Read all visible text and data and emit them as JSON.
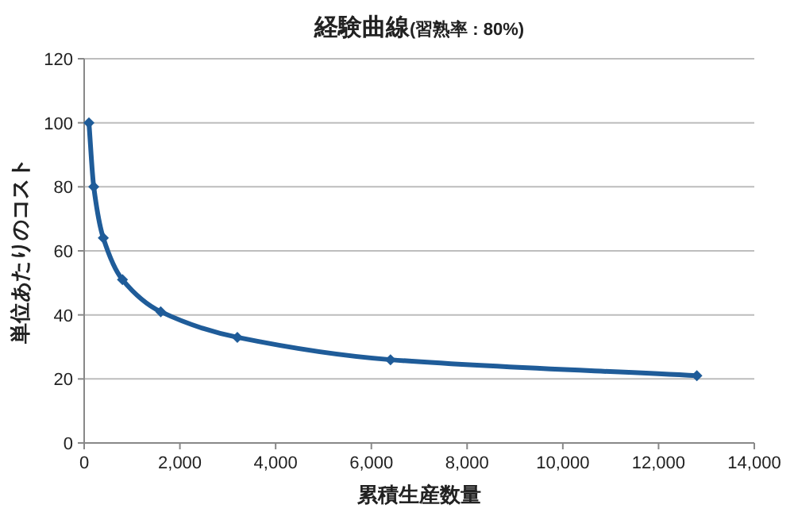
{
  "chart_data": {
    "type": "line",
    "title": "経験曲線",
    "subtitle": "(習熟率 : 80%)",
    "xlabel": "累積生産数量",
    "ylabel": "単位あたりのコスト",
    "x": [
      100,
      200,
      400,
      800,
      1600,
      3200,
      6400,
      12800
    ],
    "series": [
      {
        "color": "#1f5c99",
        "values": [
          100,
          80,
          64,
          51,
          41,
          33,
          26,
          21
        ]
      }
    ],
    "xlim": [
      0,
      14000
    ],
    "xticks": [
      0,
      {
        "value": 2000,
        "label": "2,000"
      },
      {
        "value": 4000,
        "label": "4,000"
      },
      {
        "value": 6000,
        "label": "6,000"
      },
      {
        "value": 8000,
        "label": "8,000"
      },
      {
        "value": 10000,
        "label": "10,000"
      },
      {
        "value": 12000,
        "label": "12,000"
      },
      {
        "value": 14000,
        "label": "14,000"
      }
    ],
    "ylim": [
      0,
      120
    ],
    "yticks": [
      0,
      20,
      40,
      60,
      80,
      100,
      120
    ],
    "grid": "y",
    "marker": "diamond"
  }
}
